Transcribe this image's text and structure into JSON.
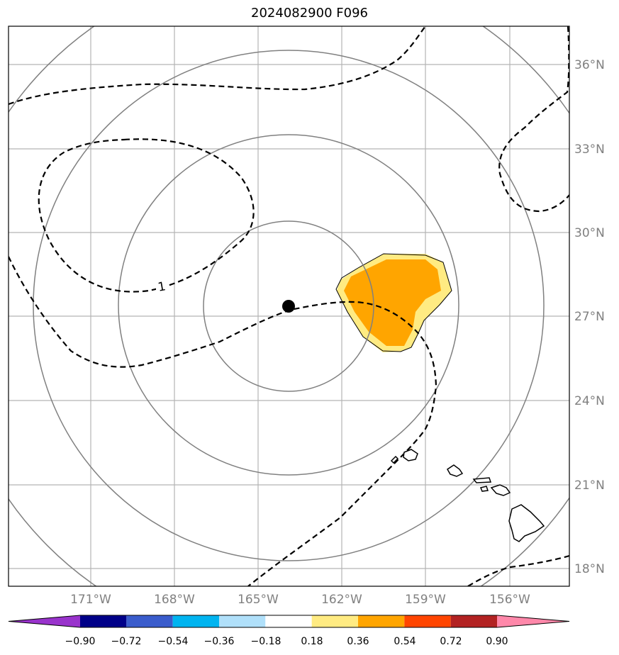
{
  "title": "2024082900 F096",
  "map": {
    "lon_labels": [
      "171°W",
      "168°W",
      "165°W",
      "162°W",
      "159°W",
      "156°W"
    ],
    "lat_labels": [
      "36°N",
      "33°N",
      "30°N",
      "27°N",
      "24°N",
      "21°N",
      "18°N"
    ],
    "contour_label": "1",
    "center_marker": {
      "lon": -163.9,
      "lat": 27.4
    }
  },
  "colorbar": {
    "colors": [
      "#9933cc",
      "#000088",
      "#3a5ccc",
      "#00b4f0",
      "#b0e0fa",
      "#ffffff",
      "#ffeb82",
      "#ffa500",
      "#ff4500",
      "#b22222",
      "#ff88aa"
    ],
    "tick_labels": [
      "−0.90",
      "−0.72",
      "−0.54",
      "−0.36",
      "−0.18",
      "0.18",
      "0.36",
      "0.54",
      "0.72",
      "0.90"
    ]
  }
}
